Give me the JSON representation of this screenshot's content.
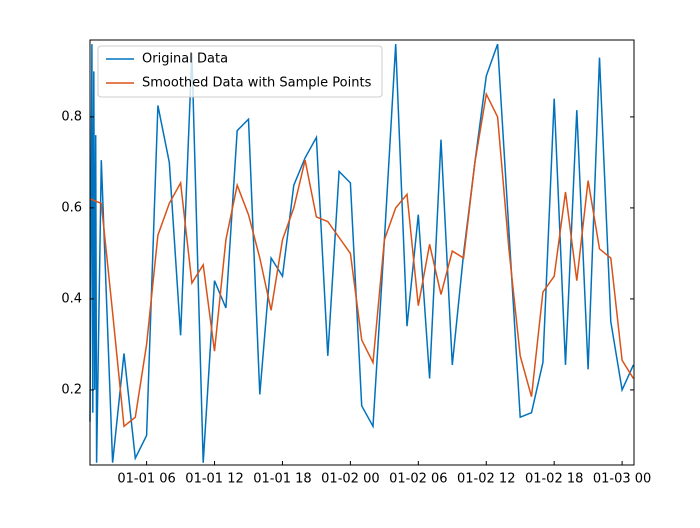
{
  "chart_data": {
    "type": "line",
    "series": [
      {
        "name": "Original Data",
        "color": "#0072bd",
        "x": [
          "01-01 01:00",
          "01-01 01:10",
          "01-01 01:15",
          "01-01 01:20",
          "01-01 01:25",
          "01-01 01:30",
          "01-01 01:35",
          "01-01 02:00",
          "01-01 03:00",
          "01-01 04:00",
          "01-01 05:00",
          "01-01 06:00",
          "01-01 07:00",
          "01-01 08:00",
          "01-01 09:00",
          "01-01 10:00",
          "01-01 11:00",
          "01-01 12:00",
          "01-01 13:00",
          "01-01 14:00",
          "01-01 15:00",
          "01-01 16:00",
          "01-01 17:00",
          "01-01 18:00",
          "01-01 19:00",
          "01-01 20:00",
          "01-01 21:00",
          "01-01 22:00",
          "01-01 23:00",
          "01-02 00:00",
          "01-02 01:00",
          "01-02 02:00",
          "01-02 03:00",
          "01-02 04:00",
          "01-02 05:00",
          "01-02 06:00",
          "01-02 07:00",
          "01-02 08:00",
          "01-02 09:00",
          "01-02 10:00",
          "01-02 11:00",
          "01-02 12:00",
          "01-02 13:00",
          "01-02 14:00",
          "01-02 15:00",
          "01-02 16:00",
          "01-02 17:00",
          "01-02 18:00",
          "01-02 19:00",
          "01-02 20:00",
          "01-02 21:00",
          "01-02 22:00",
          "01-02 23:00",
          "01-03 00:00",
          "01-03 01:00"
        ],
        "values": [
          0.13,
          0.96,
          0.15,
          0.9,
          0.2,
          0.76,
          0.04,
          0.705,
          0.04,
          0.28,
          0.05,
          0.1,
          0.825,
          0.7,
          0.32,
          0.94,
          0.04,
          0.44,
          0.38,
          0.77,
          0.795,
          0.19,
          0.49,
          0.45,
          0.65,
          0.71,
          0.755,
          0.275,
          0.68,
          0.655,
          0.165,
          0.12,
          0.53,
          0.96,
          0.34,
          0.585,
          0.225,
          0.75,
          0.255,
          0.5,
          0.7,
          0.89,
          0.96,
          0.55,
          0.14,
          0.15,
          0.26,
          0.84,
          0.255,
          0.815,
          0.245,
          0.93,
          0.35,
          0.2,
          0.255
        ]
      },
      {
        "name": "Smoothed Data with Sample Points",
        "color": "#d95319",
        "x": [
          "01-01 01:00",
          "01-01 02:00",
          "01-01 03:00",
          "01-01 04:00",
          "01-01 05:00",
          "01-01 06:00",
          "01-01 07:00",
          "01-01 08:00",
          "01-01 09:00",
          "01-01 10:00",
          "01-01 11:00",
          "01-01 12:00",
          "01-01 13:00",
          "01-01 14:00",
          "01-01 15:00",
          "01-01 16:00",
          "01-01 17:00",
          "01-01 18:00",
          "01-01 19:00",
          "01-01 20:00",
          "01-01 21:00",
          "01-01 22:00",
          "01-01 23:00",
          "01-02 00:00",
          "01-02 01:00",
          "01-02 02:00",
          "01-02 03:00",
          "01-02 04:00",
          "01-02 05:00",
          "01-02 06:00",
          "01-02 07:00",
          "01-02 08:00",
          "01-02 09:00",
          "01-02 10:00",
          "01-02 11:00",
          "01-02 12:00",
          "01-02 13:00",
          "01-02 14:00",
          "01-02 15:00",
          "01-02 16:00",
          "01-02 17:00",
          "01-02 18:00",
          "01-02 19:00",
          "01-02 20:00",
          "01-02 21:00",
          "01-02 22:00",
          "01-02 23:00",
          "01-03 00:00",
          "01-03 01:00"
        ],
        "values": [
          0.62,
          0.61,
          0.37,
          0.12,
          0.14,
          0.3,
          0.54,
          0.61,
          0.655,
          0.435,
          0.475,
          0.285,
          0.53,
          0.65,
          0.585,
          0.49,
          0.375,
          0.53,
          0.6,
          0.705,
          0.58,
          0.57,
          0.535,
          0.5,
          0.31,
          0.26,
          0.53,
          0.6,
          0.63,
          0.385,
          0.52,
          0.41,
          0.505,
          0.49,
          0.7,
          0.85,
          0.8,
          0.51,
          0.275,
          0.185,
          0.415,
          0.45,
          0.635,
          0.44,
          0.66,
          0.51,
          0.49,
          0.265,
          0.225
        ]
      }
    ],
    "xlim": [
      "01-01 01:00",
      "01-03 01:03"
    ],
    "xticks": [
      "01-01 06",
      "01-01 12",
      "01-01 18",
      "01-02 00",
      "01-02 06",
      "01-02 12",
      "01-02 18",
      "01-03 00"
    ],
    "ylim": [
      0.035,
      0.969
    ],
    "yticks": [
      0.2,
      0.4,
      0.6,
      0.8
    ],
    "legend": "upper left"
  }
}
